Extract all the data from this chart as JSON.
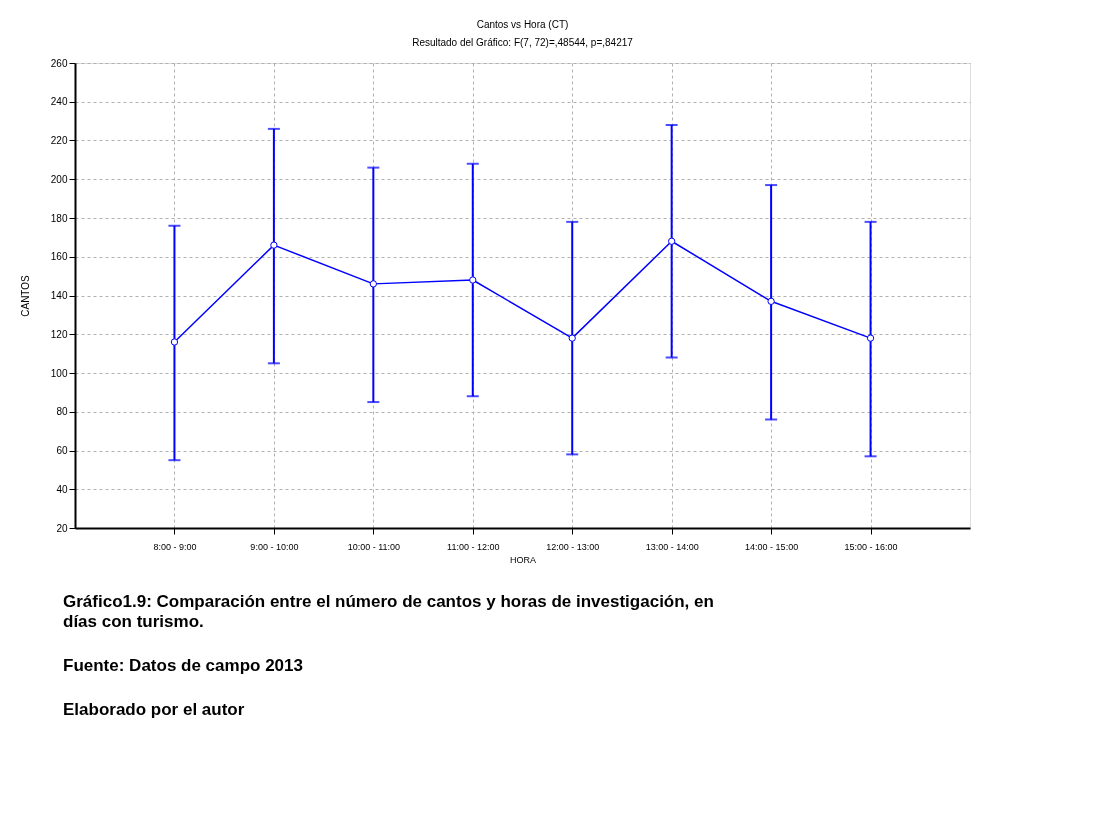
{
  "chart_data": {
    "type": "line",
    "title": "Cantos vs Hora (CT)",
    "subtitle": "Resultado del Gráfico: F(7, 72)=,48544, p=,84217",
    "xlabel": "HORA",
    "ylabel": "CANTOS",
    "categories": [
      "8:00 - 9:00",
      "9:00 - 10:00",
      "10:00 - 11:00",
      "11:00 - 12:00",
      "12:00 - 13:00",
      "13:00 - 14:00",
      "14:00 - 15:00",
      "15:00 - 16:00"
    ],
    "series": [
      {
        "color": "#0000ff",
        "values": [
          116,
          166,
          146,
          148,
          118,
          168,
          137,
          118
        ],
        "errors": [
          [
            55,
            176
          ],
          [
            105,
            226
          ],
          [
            85,
            206
          ],
          [
            88,
            208
          ],
          [
            58,
            178
          ],
          [
            108,
            228
          ],
          [
            76,
            197
          ],
          [
            57,
            178
          ]
        ]
      }
    ],
    "ylim": [
      20,
      260
    ],
    "yticks": [
      20,
      40,
      60,
      80,
      100,
      120,
      140,
      160,
      180,
      200,
      220,
      240,
      260
    ],
    "grid": true,
    "marker": "circle",
    "line_style": "solid",
    "annotations": [
      "Gráfico1.9: Comparación entre el número de cantos y horas de investigación, en días con turismo.",
      "Fuente: Datos de campo 2013",
      "Elaborado por el autor"
    ]
  }
}
